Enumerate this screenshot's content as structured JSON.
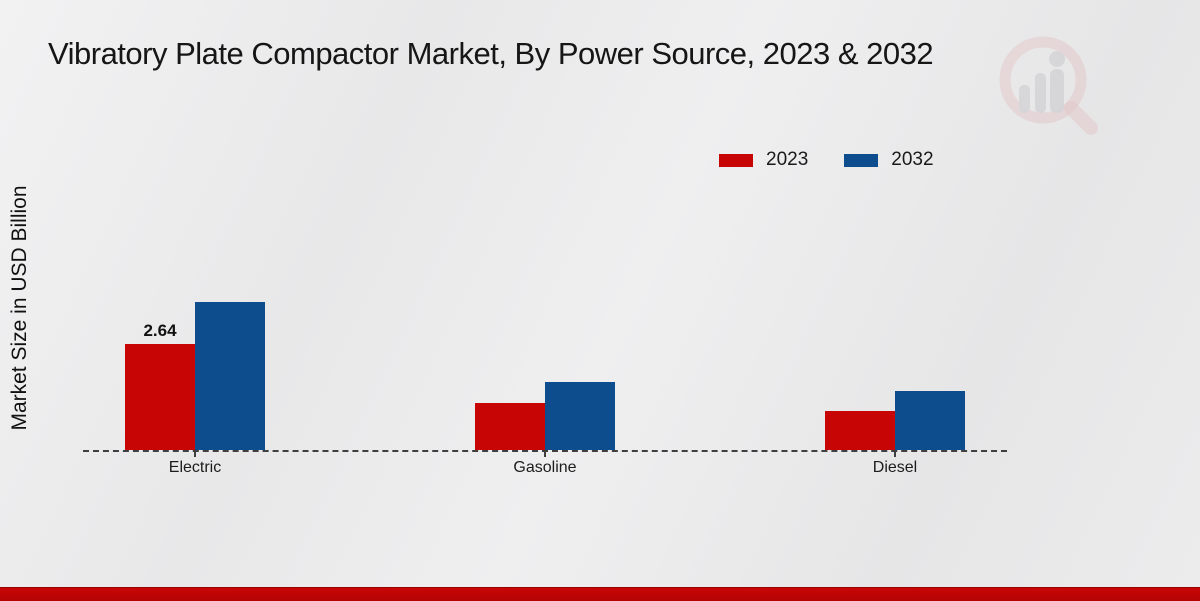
{
  "page": {
    "title": "Vibratory Plate Compactor Market, By Power Source, 2023 & 2032"
  },
  "chart_data": {
    "type": "bar",
    "title": "Vibratory Plate Compactor Market, By Power Source, 2023 & 2032",
    "xlabel": "",
    "ylabel": "Market Size in USD Billion",
    "categories": [
      "Electric",
      "Gasoline",
      "Diesel"
    ],
    "series": [
      {
        "name": "2023",
        "color": "#c80505",
        "values": [
          2.64,
          1.17,
          0.98
        ],
        "value_labels": [
          "2.64",
          "",
          ""
        ]
      },
      {
        "name": "2032",
        "color": "#0e4d8d",
        "values": [
          3.69,
          1.69,
          1.47
        ],
        "value_labels": [
          "",
          "",
          ""
        ]
      }
    ],
    "ylim": [
      0,
      4.2
    ],
    "grid": false,
    "baseline_style": "dashed",
    "legend_position": "top-right"
  },
  "colors": {
    "series_2023": "#c80505",
    "series_2032": "#0e4d8d",
    "bottom_strip": "#bd0606",
    "background": "#ebebec",
    "axis": "#3f3f3f"
  },
  "watermark": {
    "name": "market-research-magnifier-logo"
  }
}
